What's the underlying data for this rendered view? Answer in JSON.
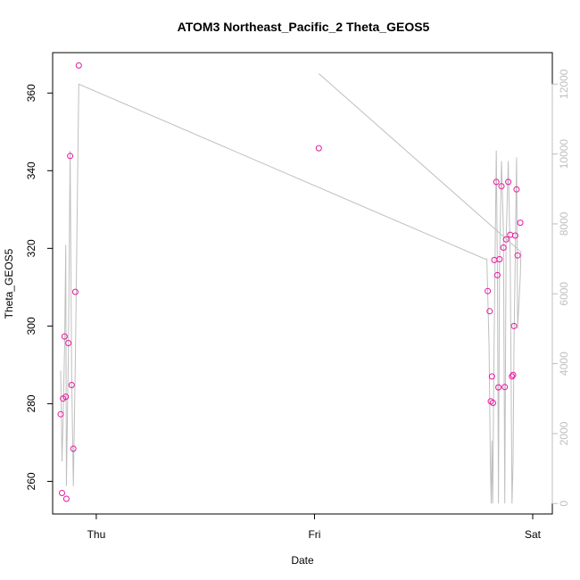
{
  "chart_data": {
    "type": "scatter",
    "title": "ATOM3 Northeast_Pacific_2 Theta_GEOS5",
    "xlabel": "Date",
    "ylabel": "Theta_GEOS5",
    "x_ticks": [
      {
        "label": "Thu",
        "day": 1.0
      },
      {
        "label": "Fri",
        "day": 2.0
      },
      {
        "label": "Sat",
        "day": 3.0
      }
    ],
    "xlim_days": [
      0.8,
      3.09
    ],
    "ylim": [
      251.6,
      370.4
    ],
    "y_ticks": [
      260,
      280,
      300,
      320,
      340,
      360
    ],
    "y2_ticks": [
      0,
      2000,
      4000,
      6000,
      8000,
      10000,
      12000
    ],
    "y2lim": [
      -300,
      12900
    ],
    "colors": {
      "points": "#e6199e",
      "line": "#bfbfbf",
      "axis": "#000000",
      "right_axis": "#bfbfbf"
    },
    "series": [
      {
        "role": "theta_points",
        "style": "open-circle",
        "points": [
          [
            0.837,
            277.3
          ],
          [
            0.843,
            257.0
          ],
          [
            0.848,
            281.3
          ],
          [
            0.855,
            297.3
          ],
          [
            0.86,
            281.8
          ],
          [
            0.863,
            255.5
          ],
          [
            0.872,
            295.6
          ],
          [
            0.88,
            343.8
          ],
          [
            0.887,
            284.8
          ],
          [
            0.895,
            268.4
          ],
          [
            0.904,
            308.8
          ],
          [
            0.92,
            367.1
          ],
          [
            2.02,
            345.8
          ],
          [
            2.794,
            309.0
          ],
          [
            2.803,
            303.8
          ],
          [
            2.808,
            280.6
          ],
          [
            2.813,
            287.0
          ],
          [
            2.818,
            280.2
          ],
          [
            2.824,
            317.0
          ],
          [
            2.833,
            337.1
          ],
          [
            2.838,
            313.1
          ],
          [
            2.843,
            284.2
          ],
          [
            2.848,
            317.2
          ],
          [
            2.857,
            336.0
          ],
          [
            2.866,
            320.2
          ],
          [
            2.872,
            284.3
          ],
          [
            2.878,
            322.3
          ],
          [
            2.888,
            337.1
          ],
          [
            2.897,
            323.5
          ],
          [
            2.905,
            287.0
          ],
          [
            2.91,
            287.4
          ],
          [
            2.914,
            300.0
          ],
          [
            2.92,
            323.3
          ],
          [
            2.926,
            335.2
          ],
          [
            2.931,
            318.2
          ],
          [
            2.943,
            326.6
          ]
        ]
      },
      {
        "role": "secondary_line",
        "axis": "right",
        "points": [
          [
            0.837,
            3800
          ],
          [
            0.843,
            1200
          ],
          [
            0.848,
            2400
          ],
          [
            0.855,
            4500
          ],
          [
            0.86,
            7400
          ],
          [
            0.863,
            500
          ],
          [
            0.872,
            4200
          ],
          [
            0.88,
            10100
          ],
          [
            0.887,
            3700
          ],
          [
            0.895,
            500
          ],
          [
            0.904,
            4000
          ],
          [
            0.92,
            12000
          ],
          [
            2.78,
            7000
          ],
          [
            2.79,
            7000
          ],
          [
            2.8,
            4500
          ],
          [
            2.806,
            1000
          ],
          [
            2.81,
            0
          ],
          [
            2.813,
            1800
          ],
          [
            2.817,
            0
          ],
          [
            2.822,
            4000
          ],
          [
            2.833,
            10100
          ],
          [
            2.838,
            6800
          ],
          [
            2.843,
            0
          ],
          [
            2.848,
            6800
          ],
          [
            2.857,
            9800
          ],
          [
            2.866,
            7800
          ],
          [
            2.872,
            0
          ],
          [
            2.878,
            7500
          ],
          [
            2.888,
            9800
          ],
          [
            2.897,
            7000
          ],
          [
            2.905,
            0
          ],
          [
            2.91,
            1200
          ],
          [
            2.914,
            4500
          ],
          [
            2.92,
            7000
          ],
          [
            2.926,
            9900
          ],
          [
            2.931,
            5000
          ],
          [
            2.943,
            6500
          ],
          [
            2.946,
            7200
          ],
          [
            2.02,
            12300
          ]
        ]
      }
    ]
  }
}
